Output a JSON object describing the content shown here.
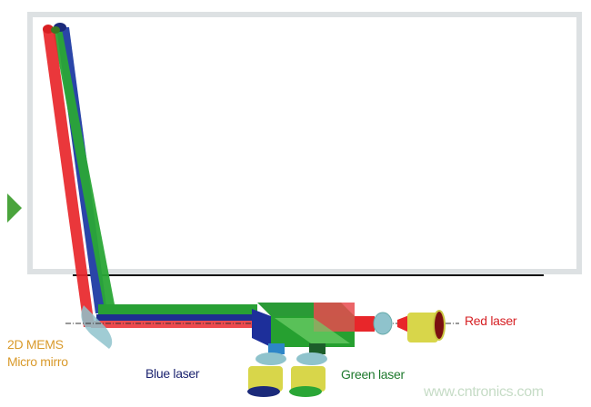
{
  "labels": {
    "mems_line1": "2D MEMS",
    "mems_line2": "Micro mirro",
    "blue_laser": "Blue laser",
    "green_laser": "Green laser",
    "red_laser": "Red laser",
    "watermark": "www.cntronics.com"
  },
  "colors": {
    "red": "#e8262a",
    "green": "#1f9a2e",
    "blue": "#1d2f8f",
    "mems_label": "#d99a2b",
    "watermark": "#c6dcc6",
    "screen_border": "#dde1e3",
    "lens": "#8fc3cc",
    "laser_body": "#d8d64a"
  }
}
